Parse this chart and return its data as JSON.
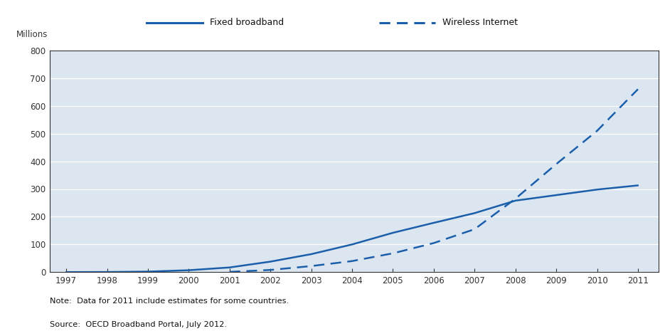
{
  "fixed_broadband": {
    "years": [
      1997,
      1998,
      1999,
      2000,
      2001,
      2002,
      2003,
      2004,
      2005,
      2006,
      2007,
      2008,
      2009,
      2010,
      2011
    ],
    "values": [
      0.2,
      0.5,
      2.0,
      7.0,
      17.0,
      38.0,
      65.0,
      100.0,
      142.0,
      178.0,
      213.0,
      258.0,
      278.0,
      298.0,
      313.0
    ]
  },
  "wireless_internet": {
    "years": [
      2001,
      2002,
      2003,
      2004,
      2005,
      2006,
      2007,
      2008,
      2009,
      2010,
      2011
    ],
    "values": [
      1.0,
      8.0,
      22.0,
      40.0,
      68.0,
      105.0,
      155.0,
      265.0,
      390.0,
      510.0,
      660.0
    ]
  },
  "line_color": "#1b5faa",
  "plot_bg_color": "#dce6f1",
  "fig_bg_color": "#ffffff",
  "legend_bg_color": "#e0e0e0",
  "ylim": [
    0,
    800
  ],
  "yticks": [
    0,
    100,
    200,
    300,
    400,
    500,
    600,
    700,
    800
  ],
  "xlim_min": 1996.6,
  "xlim_max": 2011.5,
  "xticks": [
    1997,
    1998,
    1999,
    2000,
    2001,
    2002,
    2003,
    2004,
    2005,
    2006,
    2007,
    2008,
    2009,
    2010,
    2011
  ],
  "ylabel": "Millions",
  "legend_fixed": "Fixed broadband",
  "legend_wireless": "Wireless Internet",
  "note_text": "Note:  Data for 2011 include estimates for some countries.",
  "source_text": "Source:  OECD Broadband Portal, July 2012.",
  "grid_color": "#ffffff",
  "tick_color": "#333333",
  "axis_color": "#333333",
  "legend_bar_color": "#d4d4d4"
}
